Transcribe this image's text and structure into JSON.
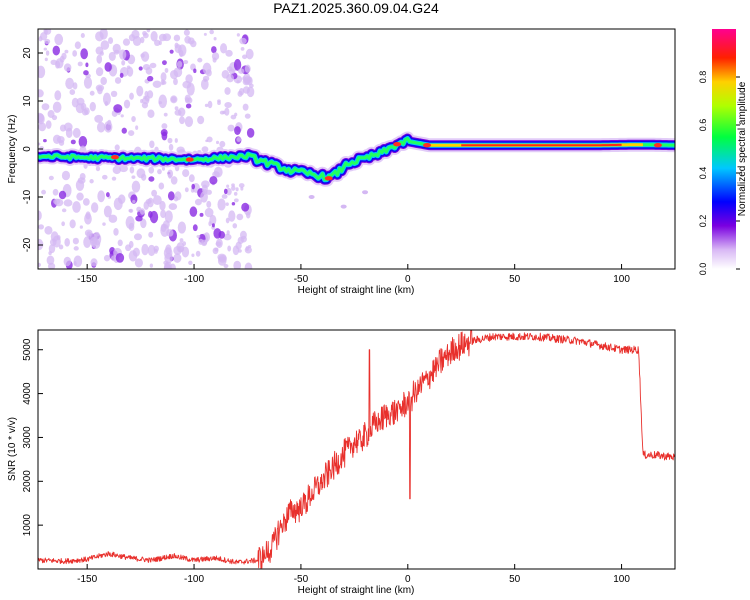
{
  "title": "PAZ1.2025.360.09.04.G24",
  "chart_data": [
    {
      "type": "heatmap",
      "panel": "spectrogram",
      "xlabel": "Height of straight line (km)",
      "ylabel": "Frequency (Hz)",
      "xlim": [
        -173,
        125
      ],
      "ylim": [
        -25,
        25
      ],
      "xticks": [
        -150,
        -100,
        -50,
        0,
        50,
        100
      ],
      "yticks": [
        -20,
        -10,
        0,
        10,
        20
      ],
      "ridge_x": [
        -173,
        -150,
        -120,
        -100,
        -75,
        -65,
        -55,
        -48,
        -42,
        -37,
        -33,
        -28,
        -20,
        -12,
        -5,
        0,
        10,
        30,
        60,
        90,
        110,
        125
      ],
      "ridge_y": [
        -1.5,
        -1.8,
        -2.0,
        -2.2,
        -1.5,
        -3.0,
        -4.5,
        -5.0,
        -5.5,
        -6.0,
        -5.0,
        -3.0,
        -2.0,
        -0.8,
        1.0,
        1.6,
        0.8,
        0.8,
        0.8,
        0.8,
        0.9,
        0.8
      ],
      "colorbar": {
        "label": "Normalized spectral amplitude",
        "ticks": [
          "0.0",
          "0.2",
          "0.4",
          "0.6",
          "0.8"
        ],
        "range": [
          0,
          1
        ]
      }
    },
    {
      "type": "line",
      "panel": "snr",
      "xlabel": "Height of straight line (km)",
      "ylabel": "SNR (10 * v/v)",
      "xlim": [
        -173,
        125
      ],
      "ylim": [
        0,
        5450
      ],
      "xticks": [
        -150,
        -100,
        -50,
        0,
        50,
        100
      ],
      "yticks": [
        1000,
        2000,
        3000,
        4000,
        5000
      ],
      "color": "#e8302c",
      "series": [
        {
          "name": "SNR",
          "x": [
            -173,
            -160,
            -150,
            -140,
            -130,
            -120,
            -110,
            -100,
            -90,
            -80,
            -70,
            -65,
            -60,
            -55,
            -50,
            -45,
            -40,
            -35,
            -30,
            -25,
            -20,
            -15,
            -10,
            -5,
            0,
            5,
            10,
            15,
            20,
            25,
            30,
            35,
            40,
            50,
            60,
            70,
            80,
            90,
            100,
            108,
            110,
            115,
            125
          ],
          "y": [
            200,
            180,
            220,
            350,
            250,
            200,
            300,
            200,
            250,
            150,
            200,
            400,
            900,
            1300,
            1400,
            1700,
            2000,
            2300,
            2600,
            2900,
            3000,
            3300,
            3500,
            3600,
            3800,
            4100,
            4400,
            4700,
            4950,
            5100,
            5200,
            5250,
            5300,
            5300,
            5300,
            5250,
            5200,
            5100,
            5000,
            5000,
            2600,
            2600,
            2550
          ]
        }
      ]
    }
  ]
}
